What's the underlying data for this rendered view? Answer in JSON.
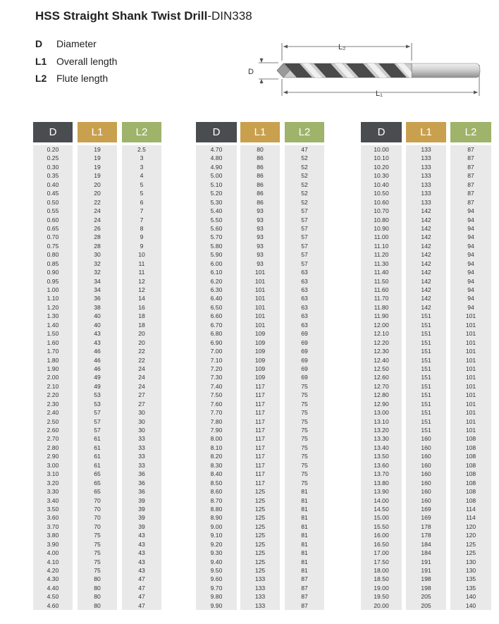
{
  "title": {
    "main": "HSS Straight Shank Twist Drill",
    "suffix": "-DIN338"
  },
  "legend": [
    {
      "key": "D",
      "label": "Diameter"
    },
    {
      "key": "L1",
      "label": "Overall length"
    },
    {
      "key": "L2",
      "label": "Flute length"
    }
  ],
  "diagram": {
    "d_label": "D",
    "l1_label": "L₁",
    "l2_label": "L₂"
  },
  "headers": {
    "d": "D",
    "l1": "L1",
    "l2": "L2"
  },
  "tables": [
    {
      "d": [
        "0.20",
        "0.25",
        "0.30",
        "0.35",
        "0.40",
        "0.45",
        "0.50",
        "0.55",
        "0.60",
        "0.65",
        "0.70",
        "0.75",
        "0.80",
        "0.85",
        "0.90",
        "0.95",
        "1.00",
        "1.10",
        "1.20",
        "1.30",
        "1.40",
        "1.50",
        "1.60",
        "1.70",
        "1.80",
        "1.90",
        "2.00",
        "2.10",
        "2.20",
        "2.30",
        "2.40",
        "2.50",
        "2.60",
        "2.70",
        "2.80",
        "2.90",
        "3.00",
        "3.10",
        "3.20",
        "3.30",
        "3.40",
        "3.50",
        "3.60",
        "3.70",
        "3.80",
        "3.90",
        "4.00",
        "4.10",
        "4.20",
        "4.30",
        "4.40",
        "4.50",
        "4.60"
      ],
      "l1": [
        "19",
        "19",
        "19",
        "19",
        "20",
        "20",
        "22",
        "24",
        "24",
        "26",
        "28",
        "28",
        "30",
        "32",
        "32",
        "34",
        "34",
        "36",
        "38",
        "40",
        "40",
        "43",
        "43",
        "46",
        "46",
        "46",
        "49",
        "49",
        "53",
        "53",
        "57",
        "57",
        "57",
        "61",
        "61",
        "61",
        "61",
        "65",
        "65",
        "65",
        "70",
        "70",
        "70",
        "70",
        "75",
        "75",
        "75",
        "75",
        "75",
        "80",
        "80",
        "80",
        "80"
      ],
      "l2": [
        "2.5",
        "3",
        "3",
        "4",
        "5",
        "5",
        "6",
        "7",
        "7",
        "8",
        "9",
        "9",
        "10",
        "11",
        "11",
        "12",
        "12",
        "14",
        "16",
        "18",
        "18",
        "20",
        "20",
        "22",
        "22",
        "24",
        "24",
        "24",
        "27",
        "27",
        "30",
        "30",
        "30",
        "33",
        "33",
        "33",
        "33",
        "36",
        "36",
        "36",
        "39",
        "39",
        "39",
        "39",
        "43",
        "43",
        "43",
        "43",
        "43",
        "47",
        "47",
        "47",
        "47"
      ]
    },
    {
      "d": [
        "4.70",
        "4.80",
        "4.90",
        "5.00",
        "5.10",
        "5.20",
        "5.30",
        "5.40",
        "5.50",
        "5.60",
        "5.70",
        "5.80",
        "5.90",
        "6.00",
        "6.10",
        "6.20",
        "6.30",
        "6.40",
        "6.50",
        "6.60",
        "6.70",
        "6.80",
        "6.90",
        "7.00",
        "7.10",
        "7.20",
        "7.30",
        "7.40",
        "7.50",
        "7.60",
        "7.70",
        "7.80",
        "7.90",
        "8.00",
        "8.10",
        "8.20",
        "8.30",
        "8.40",
        "8.50",
        "8.60",
        "8.70",
        "8.80",
        "8.90",
        "9.00",
        "9.10",
        "9.20",
        "9.30",
        "9.40",
        "9.50",
        "9.60",
        "9.70",
        "9.80",
        "9.90"
      ],
      "l1": [
        "80",
        "86",
        "86",
        "86",
        "86",
        "86",
        "86",
        "93",
        "93",
        "93",
        "93",
        "93",
        "93",
        "93",
        "101",
        "101",
        "101",
        "101",
        "101",
        "101",
        "101",
        "109",
        "109",
        "109",
        "109",
        "109",
        "109",
        "117",
        "117",
        "117",
        "117",
        "117",
        "117",
        "117",
        "117",
        "117",
        "117",
        "117",
        "117",
        "125",
        "125",
        "125",
        "125",
        "125",
        "125",
        "125",
        "125",
        "125",
        "125",
        "133",
        "133",
        "133",
        "133"
      ],
      "l2": [
        "47",
        "52",
        "52",
        "52",
        "52",
        "52",
        "52",
        "57",
        "57",
        "57",
        "57",
        "57",
        "57",
        "57",
        "63",
        "63",
        "63",
        "63",
        "63",
        "63",
        "63",
        "69",
        "69",
        "69",
        "69",
        "69",
        "69",
        "75",
        "75",
        "75",
        "75",
        "75",
        "75",
        "75",
        "75",
        "75",
        "75",
        "75",
        "75",
        "81",
        "81",
        "81",
        "81",
        "81",
        "81",
        "81",
        "81",
        "81",
        "81",
        "87",
        "87",
        "87",
        "87"
      ]
    },
    {
      "d": [
        "10.00",
        "10.10",
        "10.20",
        "10.30",
        "10.40",
        "10.50",
        "10.60",
        "10.70",
        "10.80",
        "10.90",
        "11.00",
        "11.10",
        "11.20",
        "11.30",
        "11.40",
        "11.50",
        "11.60",
        "11.70",
        "11.80",
        "11.90",
        "12.00",
        "12.10",
        "12.20",
        "12.30",
        "12.40",
        "12.50",
        "12.60",
        "12.70",
        "12.80",
        "12.90",
        "13.00",
        "13.10",
        "13.20",
        "13.30",
        "13.40",
        "13.50",
        "13.60",
        "13.70",
        "13.80",
        "13.90",
        "14.00",
        "14.50",
        "15.00",
        "15.50",
        "16.00",
        "16.50",
        "17.00",
        "17.50",
        "18.00",
        "18.50",
        "19.00",
        "19.50",
        "20.00"
      ],
      "l1": [
        "133",
        "133",
        "133",
        "133",
        "133",
        "133",
        "133",
        "142",
        "142",
        "142",
        "142",
        "142",
        "142",
        "142",
        "142",
        "142",
        "142",
        "142",
        "142",
        "151",
        "151",
        "151",
        "151",
        "151",
        "151",
        "151",
        "151",
        "151",
        "151",
        "151",
        "151",
        "151",
        "151",
        "160",
        "160",
        "160",
        "160",
        "160",
        "160",
        "160",
        "160",
        "169",
        "169",
        "178",
        "178",
        "184",
        "184",
        "191",
        "191",
        "198",
        "198",
        "205",
        "205"
      ],
      "l2": [
        "87",
        "87",
        "87",
        "87",
        "87",
        "87",
        "87",
        "94",
        "94",
        "94",
        "94",
        "94",
        "94",
        "94",
        "94",
        "94",
        "94",
        "94",
        "94",
        "101",
        "101",
        "101",
        "101",
        "101",
        "101",
        "101",
        "101",
        "101",
        "101",
        "101",
        "101",
        "101",
        "101",
        "108",
        "108",
        "108",
        "108",
        "108",
        "108",
        "108",
        "108",
        "114",
        "114",
        "120",
        "120",
        "125",
        "125",
        "130",
        "130",
        "135",
        "135",
        "140",
        "140"
      ]
    }
  ]
}
